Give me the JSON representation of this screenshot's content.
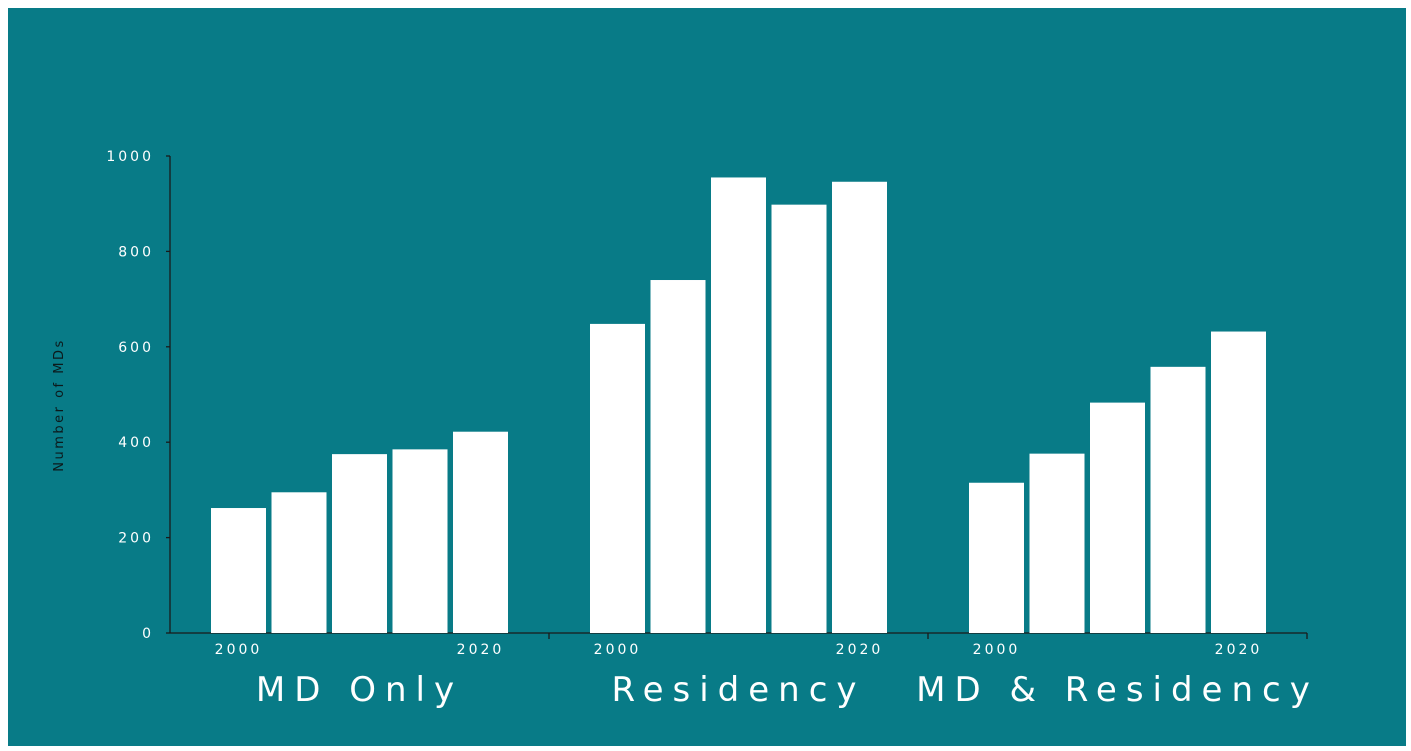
{
  "chart_data": {
    "type": "bar",
    "title": "",
    "ylabel": "Number of MDs",
    "ylim": [
      0,
      1000
    ],
    "yticks": [
      0,
      200,
      400,
      600,
      800,
      1000
    ],
    "grid": false,
    "colors": {
      "background": "#087b87",
      "bar": "#ffffff",
      "axis": "#1a1a1a"
    },
    "groups": [
      {
        "label": "MD Only",
        "tick_labels": [
          "2000",
          "",
          "",
          "",
          "2020"
        ],
        "values": [
          262,
          295,
          375,
          385,
          422
        ]
      },
      {
        "label": "Residency",
        "tick_labels": [
          "2000",
          "",
          "",
          "",
          "2020"
        ],
        "values": [
          648,
          740,
          955,
          898,
          946
        ]
      },
      {
        "label": "MD & Residency",
        "tick_labels": [
          "2000",
          "",
          "",
          "",
          "2020"
        ],
        "values": [
          315,
          376,
          483,
          558,
          632
        ]
      }
    ]
  }
}
